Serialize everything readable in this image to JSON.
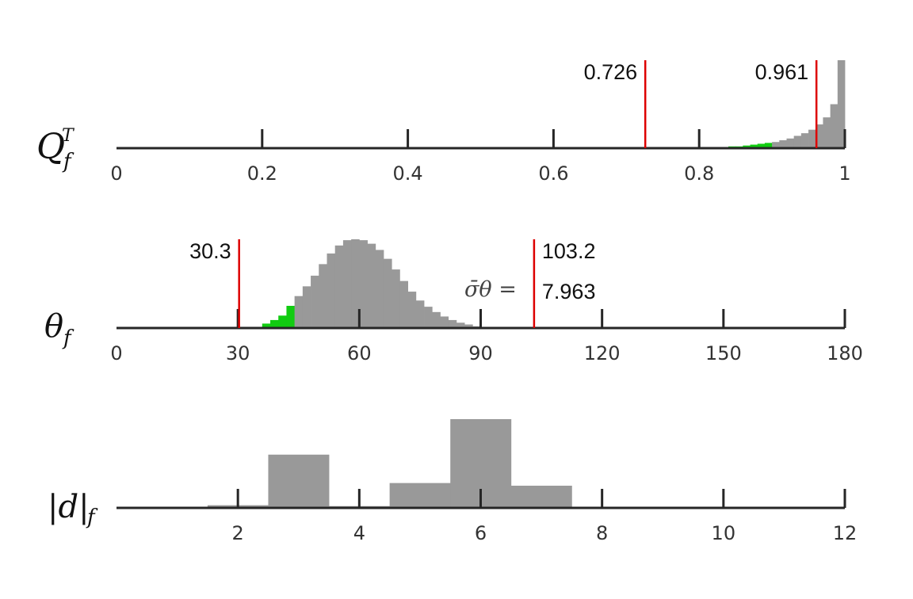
{
  "chart_data": [
    {
      "type": "bar",
      "row_label": {
        "base": "Q",
        "sup": "T",
        "sub": "f"
      },
      "xlim": [
        0,
        1
      ],
      "xticks": [
        0,
        0.2,
        0.4,
        0.6,
        0.8,
        1
      ],
      "tick_labels": [
        "0",
        "0.2",
        "0.4",
        "0.6",
        "0.8",
        "1"
      ],
      "bin_edges": [
        0.8,
        0.81,
        0.82,
        0.83,
        0.84,
        0.85,
        0.86,
        0.87,
        0.88,
        0.89,
        0.9,
        0.91,
        0.92,
        0.93,
        0.94,
        0.95,
        0.96,
        0.97,
        0.98,
        0.99,
        1.0
      ],
      "values": [
        0,
        0,
        0.01,
        0.01,
        0.02,
        0.02,
        0.03,
        0.04,
        0.05,
        0.06,
        0.07,
        0.09,
        0.11,
        0.14,
        0.17,
        0.21,
        0.27,
        0.35,
        0.5,
        1.0
      ],
      "ylim": [
        0,
        1
      ],
      "highlight_range": [
        0.8,
        0.9
      ],
      "colors": {
        "bar": "#999999",
        "highlight": "#11cc11",
        "marker": "#dd0000",
        "axis": "#262626"
      },
      "markers": [
        {
          "x": 0.726,
          "label": "0.726",
          "label_side": "left"
        },
        {
          "x": 0.961,
          "label": "0.961",
          "label_side": "left"
        }
      ]
    },
    {
      "type": "bar",
      "row_label": {
        "base": "θ",
        "sub": "f"
      },
      "xlim": [
        0,
        180
      ],
      "xticks": [
        0,
        30,
        60,
        90,
        120,
        150,
        180
      ],
      "tick_labels": [
        "0",
        "30",
        "60",
        "90",
        "120",
        "150",
        "180"
      ],
      "bin_edges": [
        34,
        36,
        38,
        40,
        42,
        44,
        46,
        48,
        50,
        52,
        54,
        56,
        58,
        60,
        62,
        64,
        66,
        68,
        70,
        72,
        74,
        76,
        78,
        80,
        82,
        84,
        86,
        88,
        90,
        92
      ],
      "values": [
        0.01,
        0.05,
        0.09,
        0.14,
        0.25,
        0.36,
        0.47,
        0.59,
        0.72,
        0.84,
        0.93,
        0.99,
        1.0,
        0.99,
        0.95,
        0.88,
        0.78,
        0.66,
        0.53,
        0.41,
        0.31,
        0.24,
        0.18,
        0.13,
        0.09,
        0.06,
        0.04,
        0.02,
        0.01
      ],
      "ylim": [
        0,
        1
      ],
      "highlight_range": [
        34,
        44
      ],
      "colors": {
        "bar": "#999999",
        "highlight": "#11cc11",
        "marker": "#dd0000",
        "axis": "#262626"
      },
      "markers": [
        {
          "x": 30.3,
          "label": "30.3",
          "label_side": "left"
        },
        {
          "x": 103.2,
          "label": "103.2",
          "label_side": "right"
        }
      ],
      "annotation": {
        "lhs": "σ̄θ =",
        "value": "7.963"
      }
    },
    {
      "type": "bar",
      "row_label": {
        "base": "|d|",
        "sub": "f"
      },
      "xlim": [
        0,
        12
      ],
      "xticks": [
        2,
        4,
        6,
        8,
        10,
        12
      ],
      "tick_labels": [
        "2",
        "4",
        "6",
        "8",
        "10",
        "12"
      ],
      "bin_edges": [
        1.5,
        2.5,
        3.5,
        4.5,
        5.5,
        6.5,
        7.5,
        8.5
      ],
      "values": [
        0.03,
        0.6,
        0.02,
        0.28,
        1.0,
        0.25,
        0.01
      ],
      "ylim": [
        0,
        1
      ],
      "colors": {
        "bar": "#999999",
        "axis": "#262626"
      }
    }
  ]
}
